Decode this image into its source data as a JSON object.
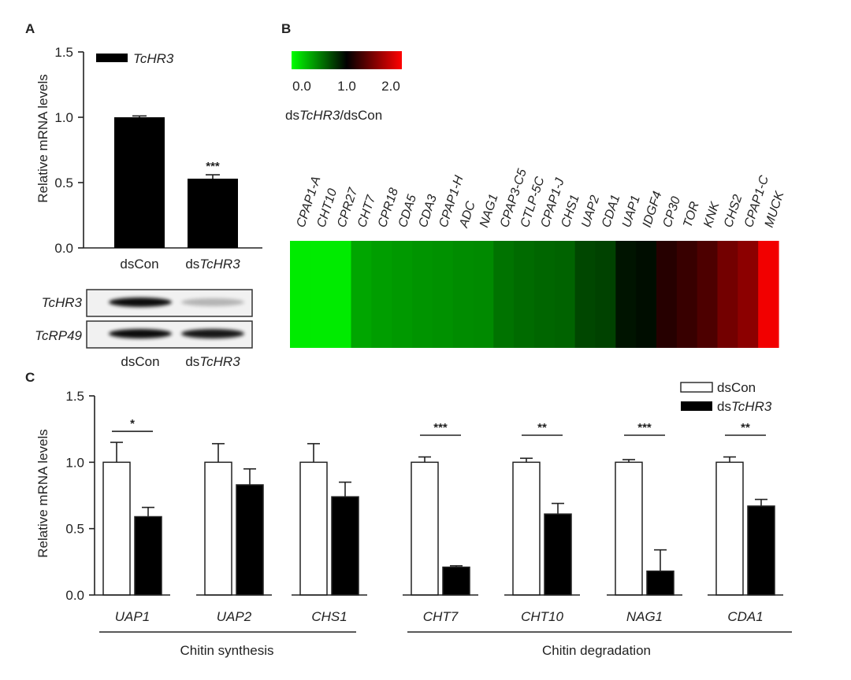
{
  "panels": {
    "a": "A",
    "b": "B",
    "c": "C"
  },
  "chart_data": [
    {
      "type": "bar",
      "panel": "A",
      "ylabel": "Relative mRNA levels",
      "ylim": [
        0,
        1.5
      ],
      "yticks": [
        "0.0",
        "0.5",
        "1.0",
        "1.5"
      ],
      "tick_values": [
        0,
        0.5,
        1.0,
        1.5
      ],
      "categories": [
        {
          "prefix": "dsCon",
          "italic": ""
        },
        {
          "prefix": "ds",
          "italic": "TcHR3"
        }
      ],
      "values": [
        1.0,
        0.53
      ],
      "errors": [
        0.01,
        0.03
      ],
      "significance": [
        "",
        "***"
      ],
      "legend": [
        {
          "name": "TcHR3",
          "color": "#000000"
        }
      ],
      "bar_color": "#000000"
    },
    {
      "type": "heatmap",
      "panel": "B",
      "scale_ticks": [
        "0.0",
        "1.0",
        "2.0"
      ],
      "scale_range": [
        0,
        2
      ],
      "scale_label_prefix": "ds",
      "scale_label_italic": "TcHR3",
      "scale_label_suffix": "/dsCon",
      "genes": [
        "CPAP1-A",
        "CHT10",
        "CPR27",
        "CHT7",
        "CPR18",
        "CDA5",
        "CDA3",
        "CPAP1-H",
        "ADC",
        "NAG1",
        "CPAP3-C5",
        "CTLP-5C",
        "CPAP1-J",
        "CHS1",
        "UAP2",
        "CDA1",
        "UAP1",
        "IDGF4",
        "CP30",
        "TOR",
        "KNK",
        "CHS2",
        "CPAP1-C",
        "MUCK"
      ],
      "values": [
        0.08,
        0.08,
        0.08,
        0.35,
        0.38,
        0.4,
        0.42,
        0.43,
        0.45,
        0.46,
        0.55,
        0.58,
        0.6,
        0.61,
        0.72,
        0.74,
        0.92,
        0.95,
        1.15,
        1.22,
        1.3,
        1.45,
        1.55,
        1.95
      ]
    },
    {
      "type": "bar",
      "panel": "C",
      "ylabel": "Relative mRNA levels",
      "ylim": [
        0,
        1.5
      ],
      "yticks": [
        "0.0",
        "0.5",
        "1.0",
        "1.5"
      ],
      "tick_values": [
        0,
        0.5,
        1.0,
        1.5
      ],
      "categories": [
        "UAP1",
        "UAP2",
        "CHS1",
        "CHT7",
        "CHT10",
        "NAG1",
        "CDA1"
      ],
      "series": [
        {
          "name": "dsCon",
          "color": "#ffffff",
          "values": [
            1.0,
            1.0,
            1.0,
            1.0,
            1.0,
            1.0,
            1.0
          ],
          "errors": [
            0.15,
            0.14,
            0.14,
            0.04,
            0.03,
            0.02,
            0.04
          ]
        },
        {
          "name": "TcHR3",
          "name_prefix": "ds",
          "color": "#000000",
          "values": [
            0.59,
            0.83,
            0.74,
            0.21,
            0.61,
            0.18,
            0.67
          ],
          "errors": [
            0.07,
            0.12,
            0.11,
            0.01,
            0.08,
            0.16,
            0.05
          ]
        }
      ],
      "significance": [
        "*",
        "",
        "",
        "***",
        "**",
        "***",
        "**"
      ],
      "groups": [
        {
          "label": "Chitin synthesis",
          "members": [
            "UAP1",
            "UAP2",
            "CHS1"
          ]
        },
        {
          "label": "Chitin degradation",
          "members": [
            "CHT7",
            "CHT10",
            "NAG1",
            "CDA1"
          ]
        }
      ]
    }
  ],
  "gel": {
    "rows": [
      {
        "label": "TcHR3"
      },
      {
        "label": "TcRP49"
      }
    ],
    "lanes": [
      {
        "prefix": "dsCon",
        "italic": ""
      },
      {
        "prefix": "ds",
        "italic": "TcHR3"
      }
    ],
    "band_intensity": [
      [
        0.95,
        0.25
      ],
      [
        0.95,
        0.9
      ]
    ]
  }
}
